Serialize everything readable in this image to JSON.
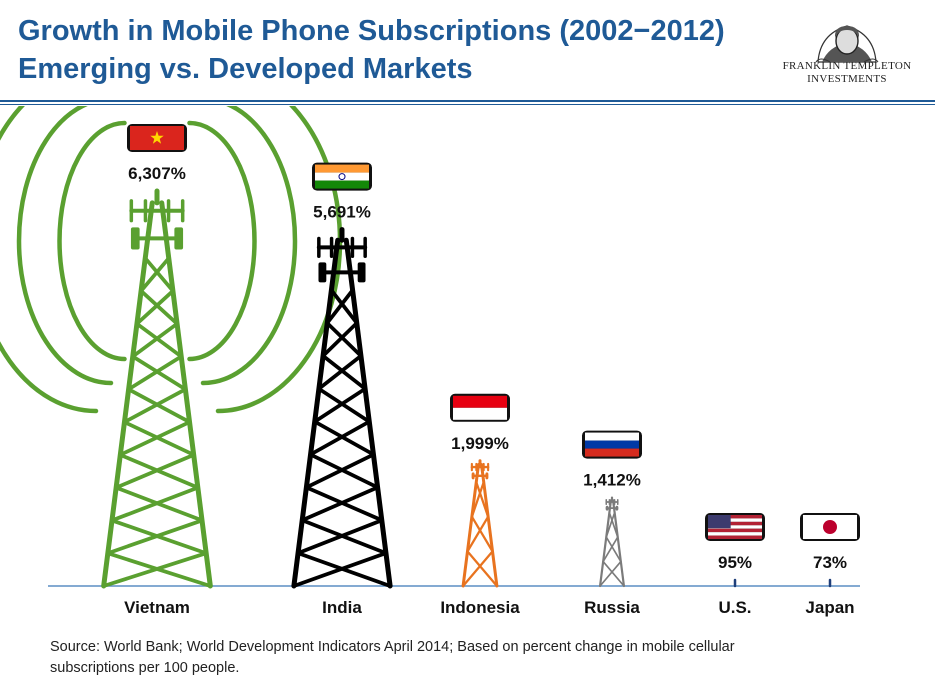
{
  "header": {
    "title_line1": "Growth in Mobile Phone Subscriptions (2002−2012)",
    "title_line2": "Emerging vs. Developed Markets"
  },
  "logo": {
    "line1": "FRANKLIN TEMPLETON",
    "line2": "INVESTMENTS"
  },
  "footer": {
    "source": "Source: World Bank; World Development Indicators April 2014; Based on percent change in mobile cellular subscriptions per 100 people."
  },
  "chart_data": {
    "type": "bar",
    "title": "Growth in Mobile Phone Subscriptions (2002−2012)",
    "subtitle": "Emerging vs. Developed Markets",
    "categories": [
      "Vietnam",
      "India",
      "Indonesia",
      "Russia",
      "U.S.",
      "Japan"
    ],
    "values": [
      6307,
      5691,
      1999,
      1412,
      95,
      73
    ],
    "value_labels": [
      "6,307%",
      "5,691%",
      "1,999%",
      "1,412%",
      "95%",
      "73%"
    ],
    "unit": "%",
    "colors": [
      "#5aa030",
      "#000000",
      "#e8731f",
      "#7b7b7b",
      "#1f3f7a",
      "#1f3f7a"
    ],
    "flags": [
      "vietnam-flag",
      "india-flag",
      "indonesia-flag",
      "russia-flag",
      "us-flag",
      "japan-flag"
    ],
    "accent_color": "#1f5a96",
    "axis_color": "#5b8ec4",
    "grid": false,
    "legend": "none"
  }
}
